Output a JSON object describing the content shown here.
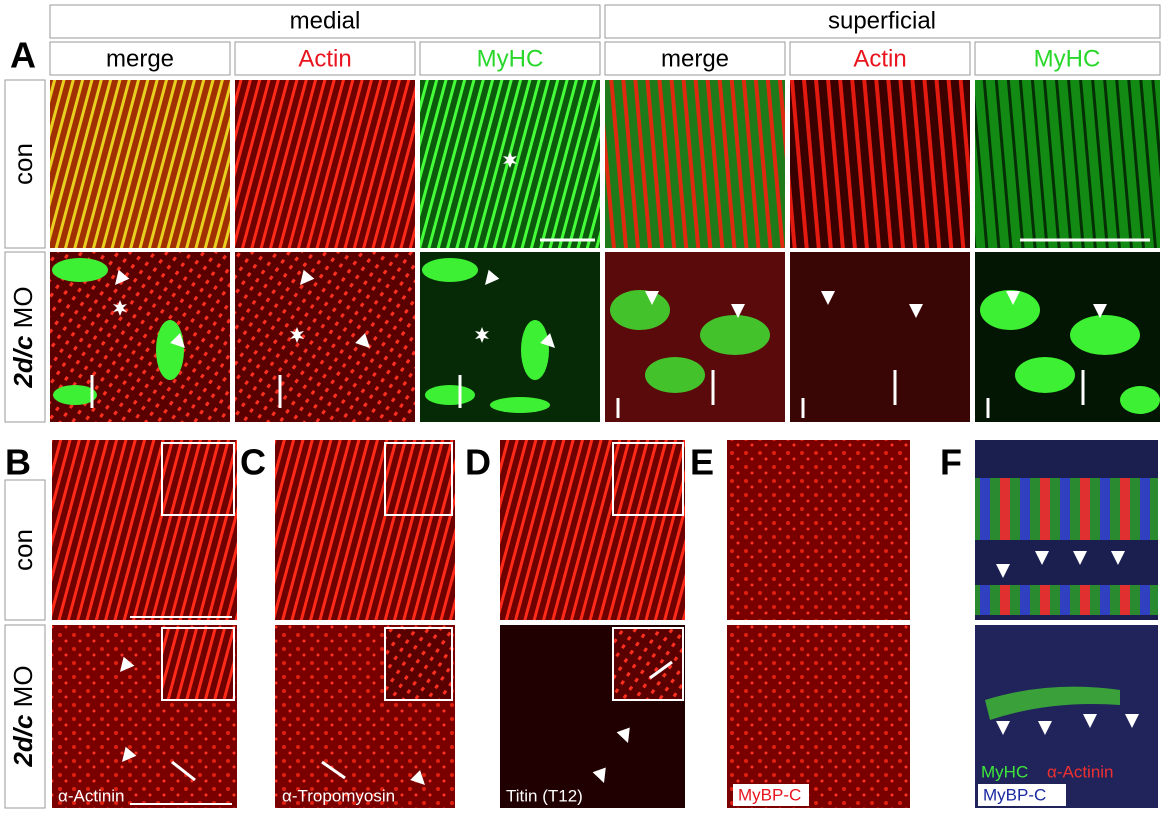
{
  "panel_a": {
    "letter": "A",
    "groups": [
      "medial",
      "superficial"
    ],
    "columns": [
      "merge",
      "Actin",
      "MyHC",
      "merge",
      "Actin",
      "MyHC"
    ],
    "rows": [
      {
        "label": "con"
      },
      {
        "italic": "2d/c",
        "rest": "MO"
      }
    ]
  },
  "bottom": {
    "letters": [
      "B",
      "C",
      "D",
      "E",
      "F"
    ],
    "rows": [
      {
        "label": "con"
      },
      {
        "italic": "2d/c",
        "rest": "MO"
      }
    ],
    "stains": [
      "α-Actinin",
      "α-Tropomyosin",
      "Titin (T12)",
      "MyBP-C"
    ],
    "f_legend": [
      "MyHC",
      "α-Actinin",
      "MyBP-C"
    ]
  }
}
